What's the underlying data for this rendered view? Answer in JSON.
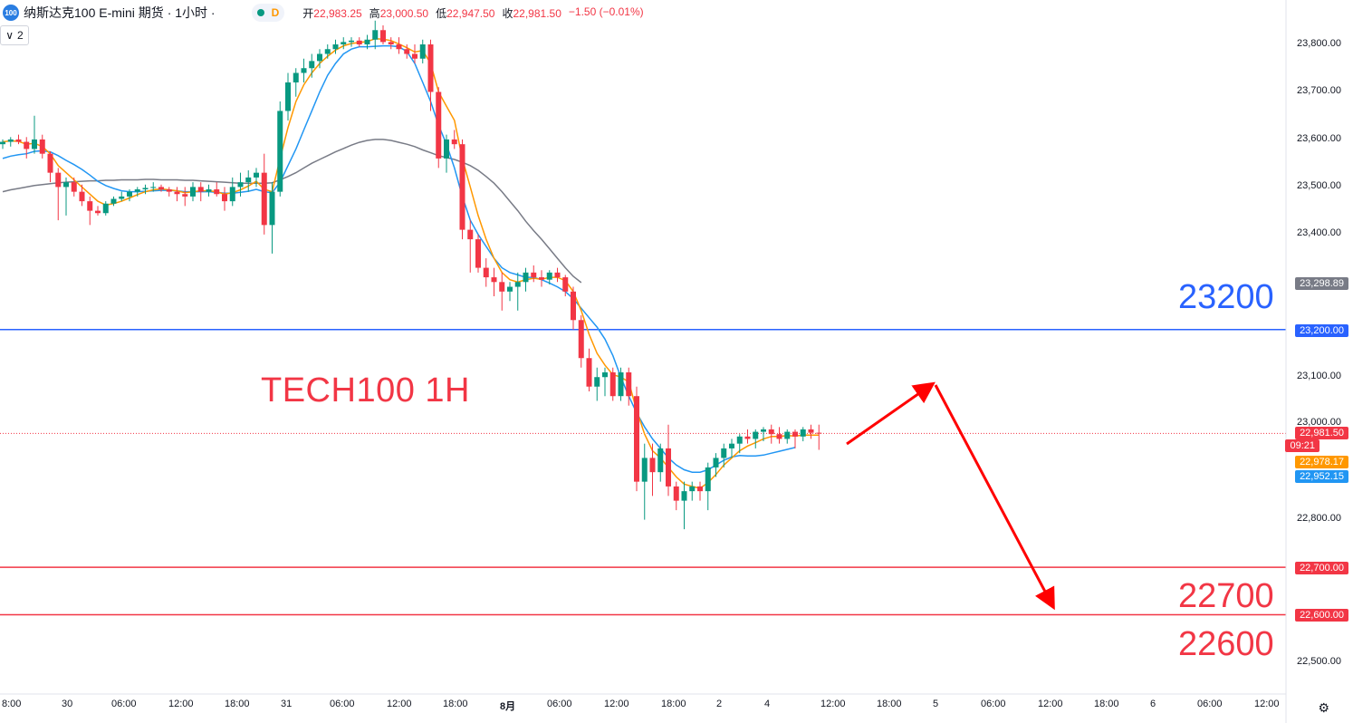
{
  "header": {
    "badge": "100",
    "title": "纳斯达克100 E-mini 期货 · 1小时 ·",
    "timeframe_badge": "D",
    "open_label": "开",
    "open_value": "22,983.25",
    "high_label": "高",
    "high_value": "23,000.50",
    "low_label": "低",
    "low_value": "22,947.50",
    "close_label": "收",
    "close_value": "22,981.50",
    "change_value": "−1.50 (−0.01%)"
  },
  "indicator_toggle": {
    "chevron": "∨",
    "count": "2"
  },
  "annotation": {
    "title": "TECH100 1H",
    "level_23200": "23200",
    "level_22700": "22700",
    "level_22600": "22600"
  },
  "price_axis": {
    "ticks": [
      "23,800.00",
      "23,700.00",
      "23,600.00",
      "23,500.00",
      "23,400.00",
      "23,100.00",
      "23,000.00",
      "22,800.00",
      "22,500.00"
    ],
    "labels": {
      "ma_slow": "23,298.89",
      "line_23200": "23,200.00",
      "last_price": "22,981.50",
      "countdown": "09:21",
      "ma_fast": "22,978.17",
      "ma_mid": "22,952.15",
      "line_22700": "22,700.00",
      "line_22600": "22,600.00"
    }
  },
  "time_axis": {
    "ticks": [
      "8:00",
      "30",
      "06:00",
      "12:00",
      "18:00",
      "31",
      "06:00",
      "12:00",
      "18:00",
      "8月",
      "06:00",
      "12:00",
      "18:00",
      "2",
      "4",
      "12:00",
      "18:00",
      "5",
      "06:00",
      "12:00",
      "18:00",
      "6",
      "06:00",
      "12:00"
    ]
  },
  "colors": {
    "up": "#089981",
    "down": "#f23645",
    "ma_fast": "#ff9800",
    "ma_mid": "#2196f3",
    "ma_slow": "#787b86",
    "blue_line": "#2962ff",
    "red_line": "#f23645"
  },
  "chart_data": {
    "type": "candlestick",
    "timeframe": "1小时",
    "horizontal_lines": [
      23200,
      22700,
      22600
    ],
    "last_price": 22981.5,
    "ylim": [
      22450,
      23880
    ],
    "x": [
      "07-29 08:00",
      "07-29 09:00",
      "07-29 10:00",
      "07-29 11:00",
      "07-29 12:00",
      "07-29 13:00",
      "07-29 14:00",
      "07-29 15:00",
      "07-29 16:00",
      "07-29 17:00",
      "07-29 18:00",
      "07-29 19:00",
      "07-29 20:00",
      "07-29 21:00",
      "07-29 22:00",
      "07-29 23:00",
      "07-30 00:00",
      "07-30 01:00",
      "07-30 02:00",
      "07-30 03:00",
      "07-30 04:00",
      "07-30 05:00",
      "07-30 06:00",
      "07-30 07:00",
      "07-30 08:00",
      "07-30 09:00",
      "07-30 10:00",
      "07-30 11:00",
      "07-30 12:00",
      "07-30 13:00",
      "07-30 14:00",
      "07-30 15:00",
      "07-30 16:00",
      "07-30 17:00",
      "07-30 18:00",
      "07-30 19:00",
      "07-30 20:00",
      "07-30 21:00",
      "07-30 22:00",
      "07-30 23:00",
      "07-31 00:00",
      "07-31 01:00",
      "07-31 02:00",
      "07-31 03:00",
      "07-31 04:00",
      "07-31 05:00",
      "07-31 06:00",
      "07-31 07:00",
      "07-31 08:00",
      "07-31 09:00",
      "07-31 10:00",
      "07-31 11:00",
      "07-31 12:00",
      "07-31 13:00",
      "07-31 14:00",
      "07-31 15:00",
      "07-31 16:00",
      "07-31 17:00",
      "07-31 18:00",
      "07-31 19:00",
      "07-31 20:00",
      "07-31 21:00",
      "07-31 22:00",
      "07-31 23:00",
      "08-01 00:00",
      "08-01 01:00",
      "08-01 02:00",
      "08-01 03:00",
      "08-01 04:00",
      "08-01 05:00",
      "08-01 06:00",
      "08-01 07:00",
      "08-01 08:00",
      "08-01 09:00",
      "08-01 10:00",
      "08-01 11:00",
      "08-01 12:00",
      "08-01 13:00",
      "08-01 14:00",
      "08-01 15:00",
      "08-01 16:00",
      "08-01 17:00",
      "08-01 18:00",
      "08-01 19:00",
      "08-01 20:00",
      "08-01 21:00",
      "08-01 22:00",
      "08-01 23:00",
      "08-02 00:00",
      "08-04 00:00",
      "08-04 01:00",
      "08-04 02:00",
      "08-04 03:00",
      "08-04 04:00",
      "08-04 05:00",
      "08-04 06:00",
      "08-04 07:00",
      "08-04 08:00",
      "08-04 09:00",
      "08-04 10:00",
      "08-04 11:00",
      "08-04 12:00",
      "08-04 13:00",
      "08-04 14:00"
    ],
    "ohlc": [
      [
        23590,
        23600,
        23580,
        23595
      ],
      [
        23595,
        23605,
        23585,
        23600
      ],
      [
        23600,
        23610,
        23590,
        23595
      ],
      [
        23595,
        23605,
        23560,
        23580
      ],
      [
        23580,
        23650,
        23570,
        23600
      ],
      [
        23600,
        23610,
        23560,
        23570
      ],
      [
        23570,
        23575,
        23510,
        23530
      ],
      [
        23530,
        23540,
        23430,
        23500
      ],
      [
        23500,
        23520,
        23440,
        23510
      ],
      [
        23510,
        23520,
        23480,
        23490
      ],
      [
        23490,
        23505,
        23460,
        23470
      ],
      [
        23470,
        23480,
        23420,
        23450
      ],
      [
        23450,
        23460,
        23440,
        23445
      ],
      [
        23445,
        23470,
        23440,
        23465
      ],
      [
        23465,
        23480,
        23460,
        23475
      ],
      [
        23475,
        23490,
        23470,
        23480
      ],
      [
        23480,
        23495,
        23470,
        23490
      ],
      [
        23490,
        23500,
        23480,
        23495
      ],
      [
        23495,
        23505,
        23485,
        23498
      ],
      [
        23498,
        23510,
        23490,
        23500
      ],
      [
        23500,
        23505,
        23490,
        23495
      ],
      [
        23495,
        23500,
        23480,
        23490
      ],
      [
        23490,
        23500,
        23470,
        23485
      ],
      [
        23485,
        23500,
        23460,
        23480
      ],
      [
        23480,
        23510,
        23470,
        23500
      ],
      [
        23500,
        23510,
        23470,
        23490
      ],
      [
        23490,
        23505,
        23480,
        23495
      ],
      [
        23495,
        23510,
        23480,
        23485
      ],
      [
        23485,
        23500,
        23450,
        23470
      ],
      [
        23470,
        23520,
        23460,
        23500
      ],
      [
        23500,
        23530,
        23480,
        23510
      ],
      [
        23510,
        23535,
        23490,
        23520
      ],
      [
        23520,
        23540,
        23500,
        23530
      ],
      [
        23530,
        23570,
        23400,
        23420
      ],
      [
        23420,
        23510,
        23360,
        23490
      ],
      [
        23490,
        23680,
        23480,
        23660
      ],
      [
        23660,
        23740,
        23640,
        23720
      ],
      [
        23720,
        23750,
        23690,
        23740
      ],
      [
        23740,
        23770,
        23720,
        23750
      ],
      [
        23750,
        23780,
        23730,
        23765
      ],
      [
        23765,
        23790,
        23750,
        23780
      ],
      [
        23780,
        23800,
        23770,
        23790
      ],
      [
        23790,
        23810,
        23780,
        23800
      ],
      [
        23800,
        23815,
        23790,
        23805
      ],
      [
        23805,
        23815,
        23795,
        23808
      ],
      [
        23808,
        23815,
        23795,
        23800
      ],
      [
        23800,
        23820,
        23790,
        23810
      ],
      [
        23810,
        23850,
        23790,
        23830
      ],
      [
        23830,
        23840,
        23800,
        23805
      ],
      [
        23805,
        23815,
        23790,
        23800
      ],
      [
        23800,
        23815,
        23780,
        23790
      ],
      [
        23790,
        23800,
        23770,
        23780
      ],
      [
        23780,
        23800,
        23760,
        23770
      ],
      [
        23770,
        23810,
        23760,
        23800
      ],
      [
        23800,
        23810,
        23660,
        23700
      ],
      [
        23700,
        23710,
        23540,
        23560
      ],
      [
        23560,
        23610,
        23530,
        23600
      ],
      [
        23600,
        23620,
        23580,
        23590
      ],
      [
        23590,
        23600,
        23390,
        23410
      ],
      [
        23410,
        23430,
        23320,
        23390
      ],
      [
        23390,
        23400,
        23320,
        23330
      ],
      [
        23330,
        23350,
        23290,
        23310
      ],
      [
        23310,
        23330,
        23270,
        23300
      ],
      [
        23300,
        23320,
        23240,
        23280
      ],
      [
        23280,
        23300,
        23260,
        23290
      ],
      [
        23290,
        23320,
        23240,
        23300
      ],
      [
        23300,
        23330,
        23280,
        23320
      ],
      [
        23320,
        23335,
        23300,
        23310
      ],
      [
        23310,
        23325,
        23290,
        23305
      ],
      [
        23305,
        23325,
        23295,
        23320
      ],
      [
        23320,
        23330,
        23300,
        23310
      ],
      [
        23310,
        23315,
        23270,
        23280
      ],
      [
        23280,
        23290,
        23200,
        23220
      ],
      [
        23220,
        23230,
        23120,
        23140
      ],
      [
        23140,
        23160,
        23070,
        23080
      ],
      [
        23080,
        23120,
        23050,
        23100
      ],
      [
        23100,
        23120,
        23060,
        23110
      ],
      [
        23110,
        23120,
        23050,
        23060
      ],
      [
        23060,
        23120,
        23050,
        23110
      ],
      [
        23110,
        23120,
        23040,
        23060
      ],
      [
        23060,
        23080,
        22860,
        22880
      ],
      [
        22880,
        22960,
        22800,
        22930
      ],
      [
        22930,
        22960,
        22850,
        22900
      ],
      [
        22900,
        22960,
        22880,
        22950
      ],
      [
        22950,
        23000,
        22850,
        22870
      ],
      [
        22870,
        22880,
        22820,
        22840
      ],
      [
        22840,
        22880,
        22780,
        22860
      ],
      [
        22860,
        22880,
        22840,
        22870
      ],
      [
        22870,
        22880,
        22840,
        22860
      ],
      [
        22860,
        22920,
        22820,
        22910
      ],
      [
        22910,
        22940,
        22890,
        22930
      ],
      [
        22930,
        22960,
        22910,
        22950
      ],
      [
        22950,
        22970,
        22930,
        22960
      ],
      [
        22960,
        22980,
        22940,
        22975
      ],
      [
        22975,
        22990,
        22960,
        22970
      ],
      [
        22970,
        22990,
        22950,
        22985
      ],
      [
        22985,
        22995,
        22965,
        22990
      ],
      [
        22990,
        23000,
        22960,
        22980
      ],
      [
        22980,
        22995,
        22960,
        22970
      ],
      [
        22970,
        22990,
        22960,
        22985
      ],
      [
        22985,
        22990,
        22950,
        22975
      ],
      [
        22975,
        22995,
        22965,
        22990
      ],
      [
        22990,
        23000,
        22970,
        22983
      ],
      [
        22983,
        23000,
        22947,
        22982
      ]
    ],
    "ma_fast": [
      23595,
      23597,
      23596,
      23590,
      23592,
      23585,
      23570,
      23545,
      23530,
      23515,
      23500,
      23485,
      23470,
      23462,
      23465,
      23470,
      23477,
      23484,
      23490,
      23494,
      23496,
      23494,
      23492,
      23488,
      23490,
      23492,
      23492,
      23490,
      23485,
      23488,
      23494,
      23502,
      23512,
      23495,
      23490,
      23560,
      23625,
      23680,
      23715,
      23740,
      23760,
      23775,
      23788,
      23797,
      23802,
      23804,
      23806,
      23812,
      23811,
      23808,
      23801,
      23793,
      23784,
      23787,
      23760,
      23700,
      23670,
      23640,
      23560,
      23500,
      23440,
      23390,
      23350,
      23320,
      23305,
      23300,
      23305,
      23308,
      23306,
      23310,
      23310,
      23303,
      23280,
      23240,
      23190,
      23150,
      23125,
      23105,
      23100,
      23090,
      23030,
      22980,
      22945,
      22930,
      22910,
      22890,
      22875,
      22870,
      22866,
      22878,
      22895,
      22915,
      22930,
      22945,
      22955,
      22962,
      22970,
      22975,
      22975,
      22977,
      22976,
      22978,
      22978,
      22978
    ],
    "ma_mid": [
      23560,
      23565,
      23568,
      23570,
      23575,
      23576,
      23574,
      23566,
      23556,
      23547,
      23537,
      23525,
      23512,
      23503,
      23497,
      23492,
      23490,
      23490,
      23491,
      23492,
      23493,
      23493,
      23492,
      23490,
      23490,
      23490,
      23490,
      23489,
      23487,
      23487,
      23489,
      23491,
      23495,
      23490,
      23488,
      23510,
      23545,
      23580,
      23620,
      23660,
      23700,
      23735,
      23760,
      23780,
      23790,
      23795,
      23795,
      23796,
      23797,
      23797,
      23795,
      23785,
      23760,
      23720,
      23680,
      23630,
      23590,
      23540,
      23480,
      23430,
      23400,
      23375,
      23350,
      23330,
      23320,
      23315,
      23310,
      23310,
      23305,
      23298,
      23290,
      23280,
      23265,
      23245,
      23225,
      23205,
      23180,
      23145,
      23100,
      23060,
      23025,
      22995,
      22970,
      22950,
      22930,
      22915,
      22905,
      22900,
      22900,
      22905,
      22915,
      22925,
      22932,
      22935,
      22934,
      22934,
      22936,
      22940,
      22944,
      22948,
      22952
    ],
    "ma_slow": [
      23490,
      23494,
      23497,
      23500,
      23503,
      23505,
      23507,
      23509,
      23510,
      23511,
      23512,
      23513,
      23513,
      23514,
      23514,
      23515,
      23515,
      23515,
      23516,
      23516,
      23515,
      23515,
      23515,
      23514,
      23514,
      23513,
      23512,
      23511,
      23510,
      23509,
      23508,
      23508,
      23508,
      23508,
      23509,
      23515,
      23522,
      23530,
      23540,
      23550,
      23558,
      23566,
      23574,
      23581,
      23588,
      23594,
      23598,
      23600,
      23600,
      23598,
      23594,
      23590,
      23585,
      23578,
      23572,
      23566,
      23562,
      23558,
      23552,
      23545,
      23535,
      23522,
      23508,
      23490,
      23470,
      23450,
      23428,
      23408,
      23390,
      23370,
      23350,
      23330,
      23312,
      23298.89
    ]
  }
}
